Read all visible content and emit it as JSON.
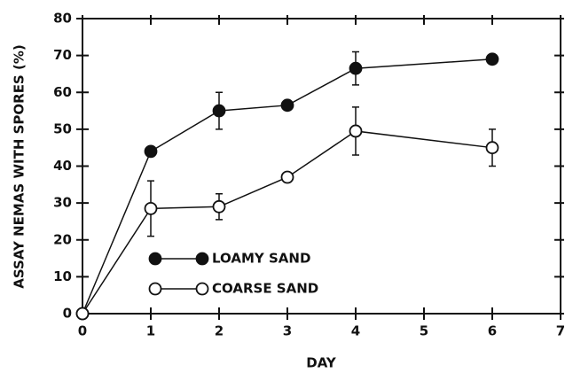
{
  "chart_data": {
    "type": "line",
    "xlabel": "DAY",
    "ylabel": "ASSAY NEMAS WITH SPORES (%)",
    "x": [
      0,
      1,
      2,
      3,
      4,
      6
    ],
    "series": [
      {
        "name": "LOAMY SAND",
        "color": "#111111",
        "filled": true,
        "values": [
          0,
          44,
          55,
          56.5,
          66.5,
          69
        ],
        "errors": [
          null,
          null,
          5,
          null,
          4.5,
          null
        ]
      },
      {
        "name": "COARSE SAND",
        "color": "#111111",
        "filled": false,
        "values": [
          0,
          28.5,
          29,
          37,
          49.5,
          45
        ],
        "errors": [
          null,
          7.5,
          3.5,
          null,
          6.5,
          5
        ]
      }
    ],
    "xlim": [
      0,
      7
    ],
    "xticks": [
      0,
      1,
      2,
      3,
      4,
      5,
      6,
      7
    ],
    "ylim": [
      0,
      80
    ],
    "yticks": [
      0,
      10,
      20,
      30,
      40,
      50,
      60,
      70,
      80
    ],
    "legend": "lower-left"
  }
}
